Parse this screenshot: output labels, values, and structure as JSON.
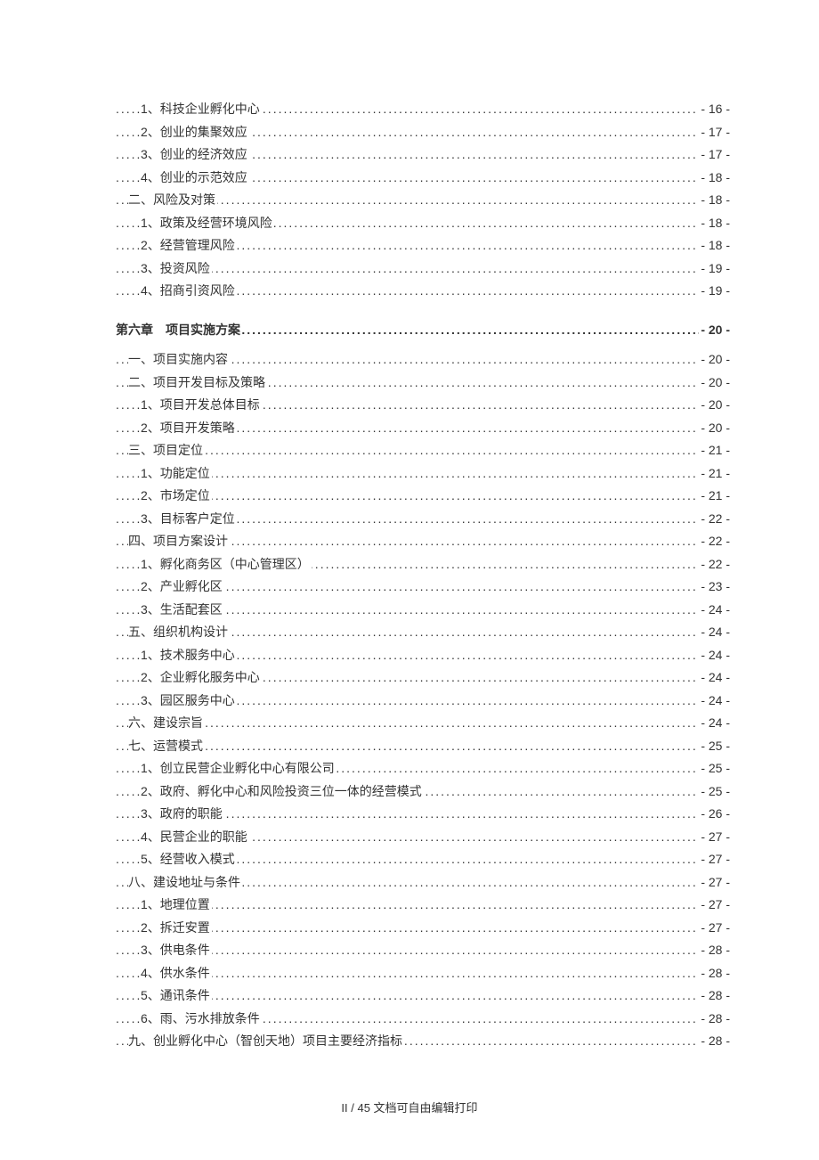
{
  "entries": [
    {
      "label": "1、科技企业孵化中心",
      "page": "- 16 -",
      "indent": 2,
      "chapter": false
    },
    {
      "label": "2、创业的集聚效应",
      "page": "- 17 -",
      "indent": 2,
      "chapter": false
    },
    {
      "label": "3、创业的经济效应",
      "page": "- 17 -",
      "indent": 2,
      "chapter": false
    },
    {
      "label": "4、创业的示范效应",
      "page": "- 18 -",
      "indent": 2,
      "chapter": false
    },
    {
      "label": "二、风险及对策",
      "page": "- 18 -",
      "indent": 1,
      "chapter": false
    },
    {
      "label": "1、政策及经营环境风险",
      "page": "- 18 -",
      "indent": 2,
      "chapter": false
    },
    {
      "label": "2、经营管理风险",
      "page": "- 18 -",
      "indent": 2,
      "chapter": false
    },
    {
      "label": "3、投资风险",
      "page": "- 19 -",
      "indent": 2,
      "chapter": false
    },
    {
      "label": "4、招商引资风险",
      "page": "- 19 -",
      "indent": 2,
      "chapter": false
    },
    {
      "label": "第六章　项目实施方案",
      "page": "- 20 -",
      "indent": 0,
      "chapter": true
    },
    {
      "label": "一、项目实施内容",
      "page": "- 20 -",
      "indent": 1,
      "chapter": false
    },
    {
      "label": "二、项目开发目标及策略",
      "page": "- 20 -",
      "indent": 1,
      "chapter": false
    },
    {
      "label": "1、项目开发总体目标",
      "page": "- 20 -",
      "indent": 2,
      "chapter": false
    },
    {
      "label": "2、项目开发策略",
      "page": "- 20 -",
      "indent": 2,
      "chapter": false
    },
    {
      "label": "三、项目定位",
      "page": "- 21 -",
      "indent": 1,
      "chapter": false
    },
    {
      "label": "1、功能定位",
      "page": "- 21 -",
      "indent": 2,
      "chapter": false
    },
    {
      "label": "2、市场定位",
      "page": "- 21 -",
      "indent": 2,
      "chapter": false
    },
    {
      "label": "3、目标客户定位",
      "page": "- 22 -",
      "indent": 2,
      "chapter": false
    },
    {
      "label": "四、项目方案设计",
      "page": "- 22 -",
      "indent": 1,
      "chapter": false
    },
    {
      "label": "1、孵化商务区（中心管理区）",
      "page": "- 22 -",
      "indent": 2,
      "chapter": false
    },
    {
      "label": "2、产业孵化区",
      "page": "- 23 -",
      "indent": 2,
      "chapter": false
    },
    {
      "label": "3、生活配套区",
      "page": "- 24 -",
      "indent": 2,
      "chapter": false
    },
    {
      "label": "五、组织机构设计",
      "page": "- 24 -",
      "indent": 1,
      "chapter": false
    },
    {
      "label": "1、技术服务中心",
      "page": "- 24 -",
      "indent": 2,
      "chapter": false
    },
    {
      "label": "2、企业孵化服务中心",
      "page": "- 24 -",
      "indent": 2,
      "chapter": false
    },
    {
      "label": "3、园区服务中心",
      "page": "- 24 -",
      "indent": 2,
      "chapter": false
    },
    {
      "label": "六、建设宗旨",
      "page": "- 24 -",
      "indent": 1,
      "chapter": false
    },
    {
      "label": "七、运营模式",
      "page": "- 25 -",
      "indent": 1,
      "chapter": false
    },
    {
      "label": "1、创立民营企业孵化中心有限公司",
      "page": "- 25 -",
      "indent": 2,
      "chapter": false
    },
    {
      "label": "2、政府、孵化中心和风险投资三位一体的经营模式",
      "page": "- 25 -",
      "indent": 2,
      "chapter": false
    },
    {
      "label": "3、政府的职能",
      "page": "- 26 -",
      "indent": 2,
      "chapter": false
    },
    {
      "label": "4、民营企业的职能",
      "page": "- 27 -",
      "indent": 2,
      "chapter": false
    },
    {
      "label": "5、经营收入模式",
      "page": "- 27 -",
      "indent": 2,
      "chapter": false
    },
    {
      "label": "八、建设地址与条件",
      "page": "- 27 -",
      "indent": 1,
      "chapter": false
    },
    {
      "label": "1、地理位置",
      "page": "- 27 -",
      "indent": 2,
      "chapter": false
    },
    {
      "label": "2、拆迁安置",
      "page": "- 27 -",
      "indent": 2,
      "chapter": false
    },
    {
      "label": "3、供电条件",
      "page": "- 28 -",
      "indent": 2,
      "chapter": false
    },
    {
      "label": "4、供水条件",
      "page": "- 28 -",
      "indent": 2,
      "chapter": false
    },
    {
      "label": "5、通讯条件",
      "page": "- 28 -",
      "indent": 2,
      "chapter": false
    },
    {
      "label": "6、雨、污水排放条件",
      "page": "- 28 -",
      "indent": 2,
      "chapter": false
    },
    {
      "label": "九、创业孵化中心（智创天地）项目主要经济指标",
      "page": "- 28 -",
      "indent": 1,
      "chapter": false
    }
  ],
  "footer": "II / 45 文档可自由编辑打印",
  "dots_fill": "...................................................................................................................................................................................................."
}
